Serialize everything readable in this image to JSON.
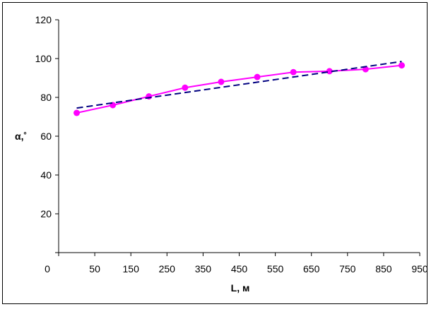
{
  "chart_data": {
    "type": "line",
    "title": "",
    "xlabel": "L, м",
    "ylabel": "α,˚",
    "x_tick_labels": [
      "50",
      "150",
      "250",
      "350",
      "450",
      "550",
      "650",
      "750",
      "850",
      "950"
    ],
    "x_origin_label": "0",
    "y_tick_labels": [
      "20",
      "40",
      "60",
      "80",
      "100",
      "120"
    ],
    "xlim": [
      0,
      950
    ],
    "ylim": [
      0,
      120
    ],
    "grid": false,
    "legend": "none",
    "series": [
      {
        "style": "solid-with-markers",
        "color": "#ff00ff",
        "x": [
          50,
          150,
          250,
          350,
          450,
          550,
          650,
          750,
          850,
          950
        ],
        "y": [
          72,
          76,
          80.5,
          85,
          88,
          90.5,
          93,
          93.5,
          94.5,
          96.5
        ]
      },
      {
        "style": "dashed",
        "color": "#000080",
        "x": [
          50,
          950
        ],
        "y": [
          74.5,
          98.5
        ]
      }
    ]
  }
}
